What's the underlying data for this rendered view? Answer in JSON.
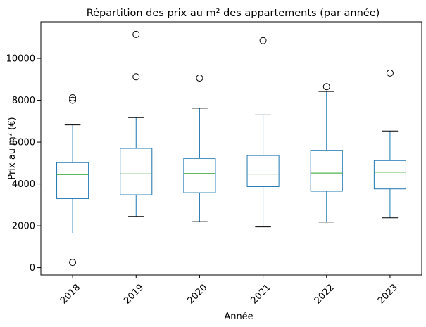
{
  "chart_data": {
    "type": "box",
    "title": "Répartition des prix au m² des appartements (par année)",
    "xlabel": "Année",
    "ylabel": "Prix au m² (€)",
    "ylim": [
      -350,
      11750
    ],
    "yticks": [
      0,
      2000,
      4000,
      6000,
      8000,
      10000
    ],
    "grid": false,
    "categories": [
      "2018",
      "2019",
      "2020",
      "2021",
      "2022",
      "2023"
    ],
    "boxes": [
      {
        "category": "2018",
        "whisker_low": 1650,
        "q1": 3300,
        "median": 4450,
        "q3": 5020,
        "whisker_high": 6820,
        "outliers": [
          250,
          8000,
          8120
        ]
      },
      {
        "category": "2019",
        "whisker_low": 2450,
        "q1": 3480,
        "median": 4480,
        "q3": 5700,
        "whisker_high": 7170,
        "outliers": [
          9120,
          11150
        ]
      },
      {
        "category": "2020",
        "whisker_low": 2200,
        "q1": 3580,
        "median": 4500,
        "q3": 5220,
        "whisker_high": 7620,
        "outliers": [
          9060
        ]
      },
      {
        "category": "2021",
        "whisker_low": 1950,
        "q1": 3870,
        "median": 4470,
        "q3": 5360,
        "whisker_high": 7300,
        "outliers": [
          10850
        ]
      },
      {
        "category": "2022",
        "whisker_low": 2180,
        "q1": 3650,
        "median": 4520,
        "q3": 5590,
        "whisker_high": 8420,
        "outliers": [
          8650
        ]
      },
      {
        "category": "2023",
        "whisker_low": 2380,
        "q1": 3760,
        "median": 4560,
        "q3": 5120,
        "whisker_high": 6530,
        "outliers": [
          9300
        ]
      }
    ],
    "colors": {
      "box": "#1f77b4",
      "median": "#2ca02c",
      "whisker": "#1f77b4",
      "cap": "#000000",
      "outlier": "#000000"
    }
  }
}
